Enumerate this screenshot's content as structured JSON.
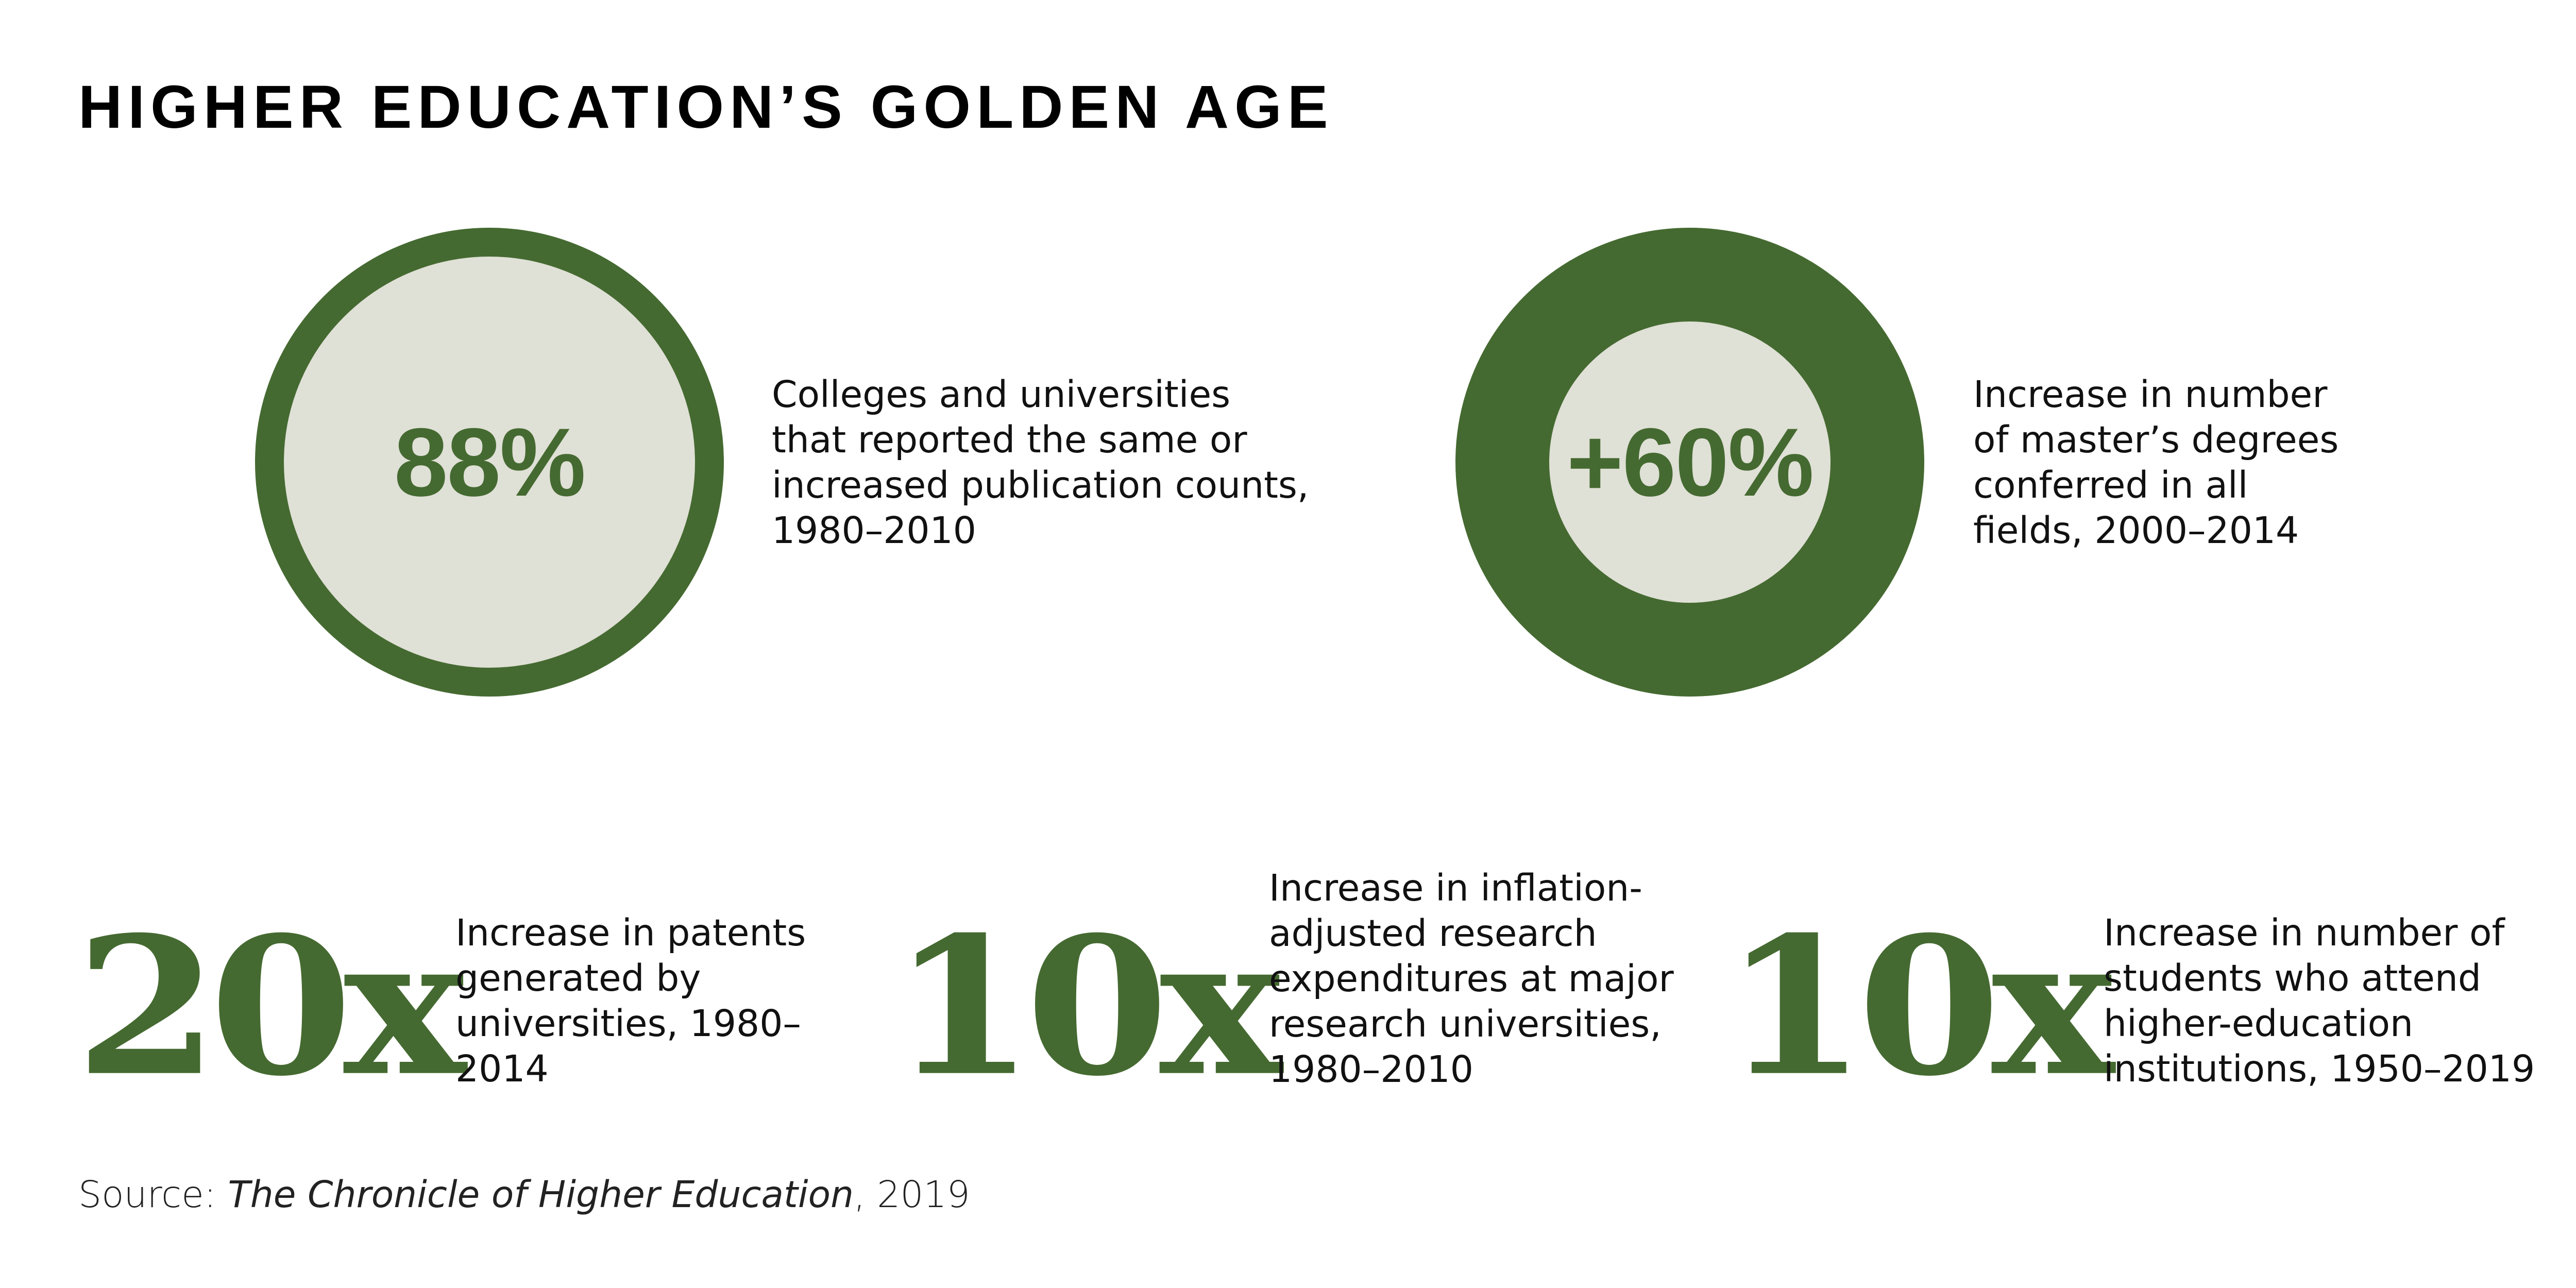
{
  "title": "HIGHER EDUCATION’S GOLDEN AGE",
  "colors": {
    "accent": "#456a31",
    "inner": "#dfe0d6"
  },
  "circle_stats": [
    {
      "value": "88%",
      "lines": [
        "Colleges and universities",
        "that reported the same or",
        "increased publication counts,",
        "1980–2010"
      ]
    },
    {
      "value": "+60%",
      "lines": [
        "Increase in number",
        "of master’s degrees",
        "conferred in all",
        "fields, 2000–2014"
      ]
    }
  ],
  "multiplier_stats": [
    {
      "value": "20x",
      "lines": [
        "Increase in patents",
        "generated by",
        "universities, 1980–",
        "2014"
      ]
    },
    {
      "value": "10x",
      "lines": [
        "Increase in inflation-",
        "adjusted research",
        "expenditures at major",
        "research universities,",
        "1980–2010"
      ]
    },
    {
      "value": "10x",
      "lines": [
        "Increase in number of",
        "students who attend",
        "higher-education",
        "institutions, 1950–2019"
      ]
    }
  ],
  "source": {
    "prefix": "Source: ",
    "publication": "The Chronicle of Higher Education",
    "suffix": ", 2019"
  }
}
